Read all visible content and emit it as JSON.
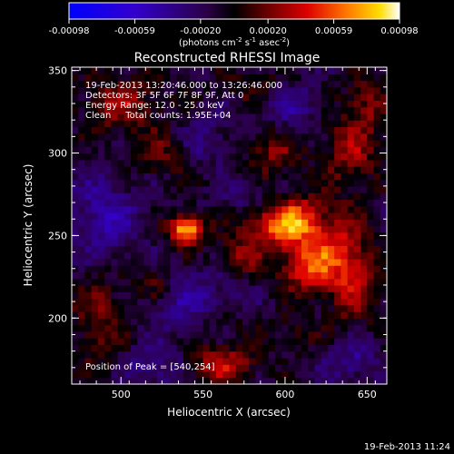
{
  "chart_data": {
    "type": "heatmap",
    "title": "Reconstructed RHESSI Image",
    "xlabel": "Heliocentric X (arcsec)",
    "ylabel": "Heliocentric Y (arcsec)",
    "xlim": [
      470,
      662
    ],
    "ylim": [
      160,
      352
    ],
    "x_ticks": [
      500,
      550,
      600,
      650
    ],
    "y_ticks": [
      200,
      250,
      300,
      350
    ],
    "info_lines": [
      "19-Feb-2013 13:20:46.000 to 13:26:46.000",
      "Detectors: 3F 5F 6F 7F 8F 9F, Att 0",
      "Energy Range: 12.0 - 25.0 keV",
      "Clean     Total counts: 1.95E+04"
    ],
    "peak_label": "Position of Peak = [540,254]",
    "peak": [
      540,
      254
    ],
    "colorbar": {
      "ticks": [
        "-0.00098",
        "-0.00059",
        "-0.00020",
        "0.00020",
        "0.00059",
        "0.00098"
      ],
      "range": [
        -0.00098,
        0.00098
      ],
      "unit_prefix": "(photons cm",
      "unit_exp1": "-2",
      "unit_mid": " s",
      "unit_exp2": "-1",
      "unit_mid2": " asec",
      "unit_exp3": "-2",
      "unit_suffix": ")"
    },
    "sources": [
      {
        "x": 540,
        "y": 254,
        "amp": 0.00098,
        "sx": 7,
        "sy": 6
      },
      {
        "x": 588,
        "y": 255,
        "amp": 0.00048,
        "sx": 13,
        "sy": 9
      },
      {
        "x": 606,
        "y": 259,
        "amp": 0.00058,
        "sx": 10,
        "sy": 10
      },
      {
        "x": 626,
        "y": 245,
        "amp": 0.00045,
        "sx": 14,
        "sy": 16
      },
      {
        "x": 612,
        "y": 230,
        "amp": 0.00042,
        "sx": 12,
        "sy": 10
      },
      {
        "x": 642,
        "y": 222,
        "amp": 0.0004,
        "sx": 12,
        "sy": 18
      },
      {
        "x": 562,
        "y": 172,
        "amp": 0.0005,
        "sx": 14,
        "sy": 8
      },
      {
        "x": 500,
        "y": 330,
        "amp": 0.00036,
        "sx": 18,
        "sy": 12
      },
      {
        "x": 530,
        "y": 300,
        "amp": 0.0003,
        "sx": 16,
        "sy": 10
      },
      {
        "x": 592,
        "y": 300,
        "amp": 0.00032,
        "sx": 12,
        "sy": 10
      },
      {
        "x": 640,
        "y": 300,
        "amp": 0.00035,
        "sx": 12,
        "sy": 16
      },
      {
        "x": 487,
        "y": 198,
        "amp": 0.0003,
        "sx": 12,
        "sy": 22
      },
      {
        "x": 572,
        "y": 236,
        "amp": 0.0003,
        "sx": 10,
        "sy": 8
      },
      {
        "x": 520,
        "y": 222,
        "amp": 0.00025,
        "sx": 8,
        "sy": 8
      },
      {
        "x": 560,
        "y": 200,
        "amp": 0.00022,
        "sx": 12,
        "sy": 8
      },
      {
        "x": 605,
        "y": 190,
        "amp": 0.0002,
        "sx": 10,
        "sy": 8
      },
      {
        "x": 582,
        "y": 340,
        "amp": 0.00025,
        "sx": 12,
        "sy": 8
      },
      {
        "x": 650,
        "y": 330,
        "amp": 0.0003,
        "sx": 10,
        "sy": 12
      }
    ],
    "negative_regions": [
      {
        "x": 490,
        "y": 260,
        "amp": -0.00035,
        "sx": 14,
        "sy": 18
      },
      {
        "x": 548,
        "y": 305,
        "amp": -0.0003,
        "sx": 12,
        "sy": 10
      },
      {
        "x": 545,
        "y": 210,
        "amp": -0.0003,
        "sx": 20,
        "sy": 12
      },
      {
        "x": 600,
        "y": 330,
        "amp": -0.00025,
        "sx": 14,
        "sy": 10
      },
      {
        "x": 520,
        "y": 170,
        "amp": -0.00025,
        "sx": 14,
        "sy": 10
      },
      {
        "x": 640,
        "y": 175,
        "amp": -0.00025,
        "sx": 12,
        "sy": 10
      },
      {
        "x": 575,
        "y": 275,
        "amp": -0.0002,
        "sx": 8,
        "sy": 8
      }
    ]
  },
  "footer_timestamp": "19-Feb-2013 11:24"
}
